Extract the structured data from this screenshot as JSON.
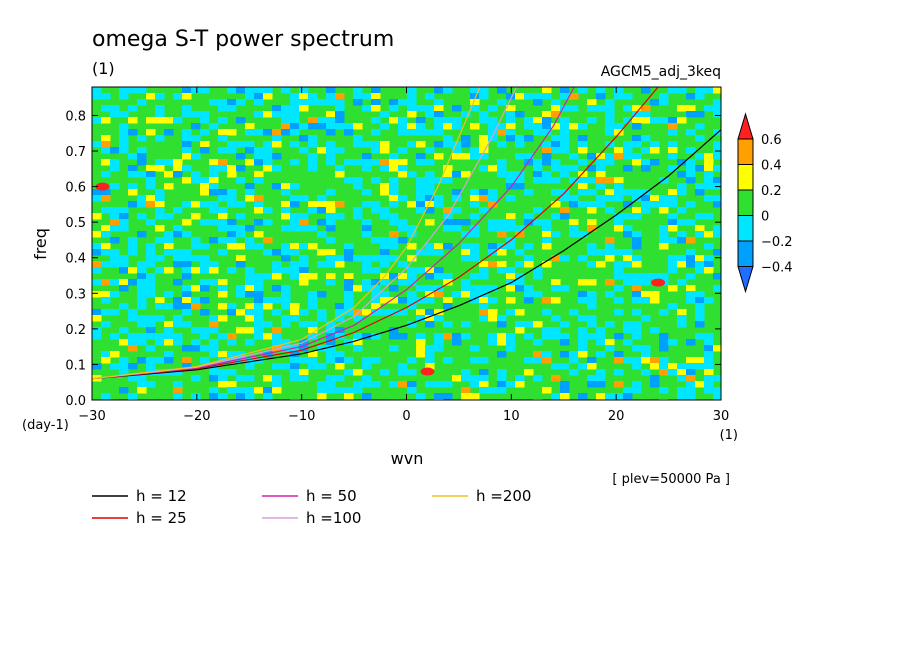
{
  "figure": {
    "title": "omega S-T power spectrum",
    "subtitle": "(1)",
    "run_label": "AGCM5_adj_3keq",
    "level_note": "[ plev=50000 Pa ]",
    "x_unit_label": "(1)",
    "y_unit_label": "(day-1)"
  },
  "chart_data": {
    "type": "heatmap",
    "xlabel": "wvn",
    "ylabel": "freq",
    "xlim": [
      -30,
      30
    ],
    "ylim": [
      0,
      0.88
    ],
    "x_ticks": [
      -30,
      -20,
      -10,
      0,
      10,
      20,
      30
    ],
    "x_tick_labels": [
      "-30",
      "-20",
      "-10",
      "0",
      "10",
      "20",
      "30"
    ],
    "y_ticks": [
      0.0,
      0.1,
      0.2,
      0.3,
      0.4,
      0.5,
      0.6,
      0.7,
      0.8
    ],
    "y_tick_labels": [
      "0.0",
      "0.1",
      "0.2",
      "0.3",
      "0.4",
      "0.5",
      "0.6",
      "0.7",
      "0.8"
    ],
    "color_levels": {
      "boundaries": [
        -0.4,
        -0.2,
        0,
        0.2,
        0.4,
        0.6
      ],
      "labels": [
        "0.6",
        "0.4",
        "0.2",
        "0",
        "-0.2",
        "-0.4"
      ],
      "colors": [
        "#1e6eff",
        "#00a0ff",
        "#00e6ff",
        "#30e030",
        "#ffff00",
        "#ffa000",
        "#ff2020"
      ]
    },
    "field_description_levels": "noisy field, mostly between -0.2 and 0.2",
    "dispersion_curves": [
      {
        "name": "h = 12",
        "color": "#000000",
        "x": [
          -30,
          -20,
          -10,
          -5,
          0,
          5,
          10,
          15,
          20,
          25,
          30
        ],
        "y": [
          0.06,
          0.085,
          0.13,
          0.165,
          0.21,
          0.265,
          0.33,
          0.42,
          0.52,
          0.63,
          0.76
        ]
      },
      {
        "name": "h = 25",
        "color": "#e00000",
        "x": [
          -30,
          -20,
          -10,
          -5,
          0,
          5,
          10,
          15,
          20,
          24
        ],
        "y": [
          0.06,
          0.088,
          0.14,
          0.19,
          0.26,
          0.345,
          0.45,
          0.58,
          0.74,
          0.88
        ]
      },
      {
        "name": "h = 50",
        "color": "#d020b0",
        "x": [
          -30,
          -20,
          -10,
          -5,
          0,
          5,
          10,
          14,
          16
        ],
        "y": [
          0.06,
          0.09,
          0.15,
          0.21,
          0.31,
          0.44,
          0.6,
          0.77,
          0.88
        ]
      },
      {
        "name": "h =100",
        "color": "#d8a0d8",
        "x": [
          -30,
          -20,
          -10,
          -5,
          0,
          4,
          8,
          10.5
        ],
        "y": [
          0.06,
          0.092,
          0.16,
          0.235,
          0.37,
          0.52,
          0.73,
          0.88
        ]
      },
      {
        "name": "h =200",
        "color": "#f0c020",
        "x": [
          -30,
          -20,
          -10,
          -5,
          -2,
          0,
          3,
          7
        ],
        "y": [
          0.06,
          0.094,
          0.17,
          0.26,
          0.35,
          0.43,
          0.6,
          0.88
        ]
      }
    ],
    "legend_placement": "bottom"
  }
}
